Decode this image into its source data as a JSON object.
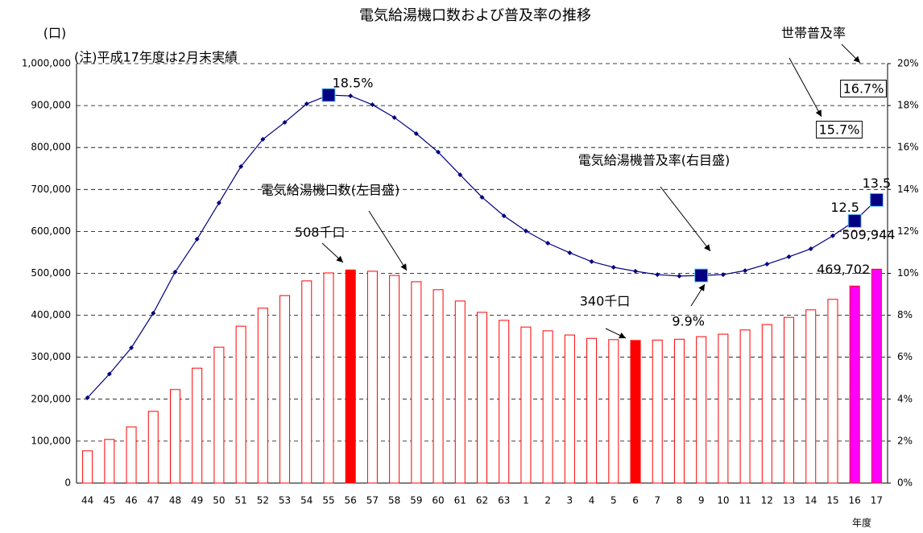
{
  "chart_data": {
    "type": "bar_line",
    "title": "電気給湯機口数および普及率の推移",
    "categories": [
      "44",
      "45",
      "46",
      "47",
      "48",
      "49",
      "50",
      "51",
      "52",
      "53",
      "54",
      "55",
      "56",
      "57",
      "58",
      "59",
      "60",
      "61",
      "62",
      "63",
      "1",
      "2",
      "3",
      "4",
      "5",
      "6",
      "7",
      "8",
      "9",
      "10",
      "11",
      "12",
      "13",
      "14",
      "15",
      "16",
      "17"
    ],
    "x_label": "年度",
    "annotations": [
      "(口)",
      "(注)平成17年度は2月末実績",
      "世帯普及率",
      "16.7%",
      "15.7%",
      "電気給湯機普及率(右目盛)",
      "電気給湯機口数(左目盛)"
    ],
    "series": [
      {
        "name": "電気給湯機口数",
        "axis": "y",
        "color": "#ff0000",
        "fills": [
          "#ffffff",
          "#ffffff",
          "#ffffff",
          "#ffffff",
          "#ffffff",
          "#ffffff",
          "#ffffff",
          "#ffffff",
          "#ffffff",
          "#ffffff",
          "#ffffff",
          "#ffffff",
          "#ff0000",
          "#ffffff",
          "#ffffff",
          "#ffffff",
          "#ffffff",
          "#ffffff",
          "#ffffff",
          "#ffffff",
          "#ffffff",
          "#ffffff",
          "#ffffff",
          "#ffffff",
          "#ffffff",
          "#ff0000",
          "#ffffff",
          "#ffffff",
          "#ffffff",
          "#ffffff",
          "#ffffff",
          "#ffffff",
          "#ffffff",
          "#ffffff",
          "#ffffff",
          "#ff00ff",
          "#ff00ff"
        ],
        "values": [
          77000,
          104000,
          134000,
          171000,
          223000,
          274000,
          324000,
          374000,
          417000,
          447000,
          482000,
          501000,
          508000,
          505000,
          495000,
          480000,
          461000,
          434000,
          407000,
          388000,
          372000,
          363000,
          353000,
          345000,
          342000,
          340000,
          341000,
          343000,
          349000,
          355000,
          365000,
          378000,
          395000,
          413000,
          438000,
          469702,
          509944
        ],
        "value_labels": [
          null,
          null,
          null,
          null,
          null,
          null,
          null,
          null,
          null,
          null,
          null,
          null,
          "508千口",
          null,
          null,
          null,
          null,
          null,
          null,
          null,
          null,
          null,
          null,
          null,
          null,
          "340千口",
          null,
          null,
          null,
          null,
          null,
          null,
          null,
          null,
          null,
          "469,702",
          "509,944"
        ]
      },
      {
        "name": "電気給湯機普及率",
        "axis": "y2",
        "color": "#000080",
        "values": [
          4.07,
          5.2,
          6.45,
          8.1,
          10.06,
          11.63,
          13.36,
          15.09,
          16.39,
          17.2,
          18.08,
          18.5,
          18.46,
          18.04,
          17.43,
          16.66,
          15.78,
          14.7,
          13.63,
          12.74,
          12.02,
          11.44,
          10.98,
          10.56,
          10.29,
          10.1,
          9.94,
          9.87,
          9.9,
          9.94,
          10.13,
          10.44,
          10.79,
          11.17,
          11.79,
          12.5,
          13.5
        ],
        "value_labels": [
          null,
          null,
          null,
          null,
          null,
          null,
          null,
          null,
          null,
          null,
          null,
          "18.5%",
          null,
          null,
          null,
          null,
          null,
          null,
          null,
          null,
          null,
          null,
          null,
          null,
          null,
          null,
          null,
          null,
          "9.9%",
          null,
          null,
          null,
          null,
          null,
          null,
          "12.5",
          "13.5"
        ]
      }
    ],
    "ylim": [
      0,
      1000000
    ],
    "yticks": [
      0,
      {
        "value": 100000,
        "label": "100,000"
      },
      {
        "value": 200000,
        "label": "200,000"
      },
      {
        "value": 300000,
        "label": "300,000"
      },
      {
        "value": 400000,
        "label": "400,000"
      },
      {
        "value": 500000,
        "label": "500,000"
      },
      {
        "value": 600000,
        "label": "600,000"
      },
      {
        "value": 700000,
        "label": "700,000"
      },
      {
        "value": 800000,
        "label": "800,000"
      },
      {
        "value": 900000,
        "label": "900,000"
      },
      {
        "value": 1000000,
        "label": "1,000,000"
      }
    ],
    "y2lim": [
      0,
      20
    ],
    "y2ticks": [
      {
        "value": 0,
        "label": "0%"
      },
      {
        "value": 2,
        "label": "2%"
      },
      {
        "value": 4,
        "label": "4%"
      },
      {
        "value": 6,
        "label": "6%"
      },
      {
        "value": 8,
        "label": "8%"
      },
      {
        "value": 10,
        "label": "10%"
      },
      {
        "value": 12,
        "label": "12%"
      },
      {
        "value": 14,
        "label": "14%"
      },
      {
        "value": 16,
        "label": "16%"
      },
      {
        "value": 18,
        "label": "18%"
      },
      {
        "value": 20,
        "label": "20%"
      }
    ],
    "grid": true
  }
}
